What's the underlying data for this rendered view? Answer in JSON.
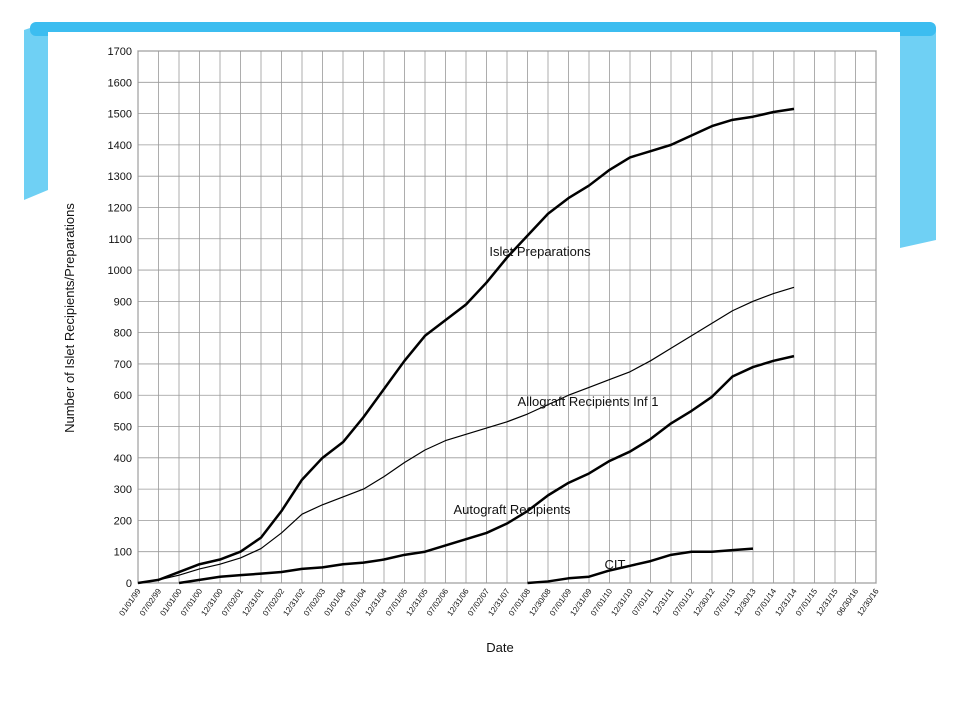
{
  "chart_data": {
    "type": "line",
    "x_label": "Date",
    "y_label": "Number of Islet Recipients/Preparations",
    "categories": [
      "01/01/99",
      "07/02/99",
      "01/01/00",
      "07/01/00",
      "12/31/00",
      "07/02/01",
      "12/31/01",
      "07/02/02",
      "12/31/02",
      "07/02/03",
      "01/01/04",
      "07/01/04",
      "12/31/04",
      "07/01/05",
      "12/31/05",
      "07/02/06",
      "12/31/06",
      "07/02/07",
      "12/31/07",
      "07/01/08",
      "12/30/08",
      "07/01/09",
      "12/31/09",
      "07/01/10",
      "12/31/10",
      "07/01/11",
      "12/31/11",
      "07/01/12",
      "12/30/12",
      "07/01/13",
      "12/30/13",
      "07/01/14",
      "12/31/14",
      "07/01/15",
      "12/31/15",
      "06/30/16",
      "12/30/16"
    ],
    "ylim": [
      0,
      1700
    ],
    "yticks": [
      0,
      100,
      200,
      300,
      400,
      500,
      600,
      700,
      800,
      900,
      1000,
      1100,
      1200,
      1300,
      1400,
      1500,
      1600,
      1700
    ],
    "grid": true,
    "series": [
      {
        "name": "Islet Preparations",
        "color": "#000000",
        "width": 2.5,
        "values": [
          0,
          10,
          35,
          60,
          75,
          100,
          145,
          230,
          330,
          400,
          450,
          530,
          620,
          710,
          790,
          840,
          890,
          960,
          1040,
          1110,
          1180,
          1230,
          1270,
          1320,
          1360,
          1380,
          1400,
          1430,
          1460,
          1480,
          1490,
          1505,
          1515,
          null,
          null,
          null,
          null
        ]
      },
      {
        "name": "Allograft Recipients Inf 1",
        "color": "#000000",
        "width": 1.2,
        "values": [
          0,
          10,
          25,
          45,
          60,
          80,
          110,
          160,
          220,
          250,
          275,
          300,
          340,
          385,
          425,
          455,
          475,
          495,
          515,
          540,
          570,
          600,
          625,
          650,
          675,
          710,
          750,
          790,
          830,
          870,
          900,
          925,
          945,
          null,
          null,
          null,
          null
        ]
      },
      {
        "name": "Autograft Recipients",
        "color": "#000000",
        "width": 2.5,
        "values": [
          null,
          null,
          0,
          10,
          20,
          25,
          30,
          35,
          45,
          50,
          60,
          65,
          75,
          90,
          100,
          120,
          140,
          160,
          190,
          230,
          280,
          320,
          350,
          390,
          420,
          460,
          510,
          550,
          595,
          660,
          690,
          710,
          725,
          null,
          null,
          null,
          null
        ]
      },
      {
        "name": "CIT",
        "color": "#000000",
        "width": 2.5,
        "values": [
          null,
          null,
          null,
          null,
          null,
          null,
          null,
          null,
          null,
          null,
          null,
          null,
          null,
          null,
          null,
          null,
          null,
          null,
          null,
          0,
          5,
          15,
          20,
          40,
          55,
          70,
          90,
          100,
          100,
          105,
          110,
          null,
          null,
          null,
          null,
          null,
          null
        ]
      }
    ]
  }
}
